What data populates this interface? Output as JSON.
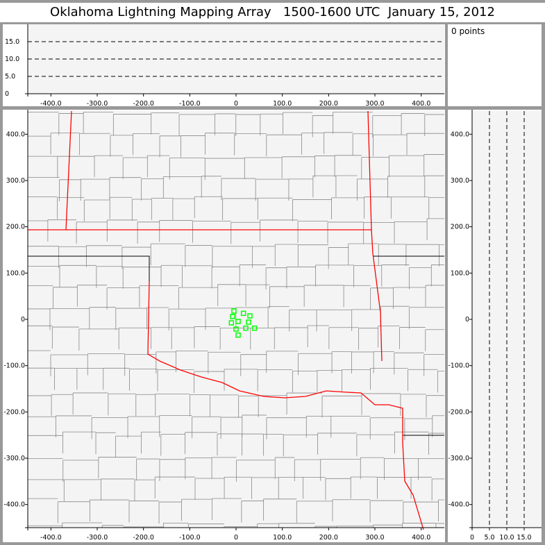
{
  "title": "Oklahoma Lightning Mapping Array   1500-1600 UTC  January 15, 2012",
  "info": {
    "point_count_label": "0 points"
  },
  "colors": {
    "background": "#999999",
    "plot_bg": "#f4f4f4",
    "state_border": "#ff0000",
    "county_border": "#888888",
    "marker": "#00ff00"
  },
  "chart_data": [
    {
      "type": "line",
      "panel": "top altitude vs east-west",
      "xlim": [
        -450,
        450
      ],
      "ylim": [
        0,
        20
      ],
      "x_ticks": [
        "-400.0",
        "-300.0",
        "-200.0",
        "-100.0",
        "0",
        "100.0",
        "200.0",
        "300.0",
        "400.0"
      ],
      "y_ticks": [
        "0",
        "5.0",
        "10.0",
        "15.0"
      ],
      "reference_lines_y": [
        5,
        10,
        15
      ]
    },
    {
      "type": "scatter",
      "panel": "plan view map",
      "xlim": [
        -450,
        450
      ],
      "ylim": [
        -450,
        450
      ],
      "x_ticks": [
        "-400.0",
        "-300.0",
        "-200.0",
        "-100.0",
        "0",
        "100.0",
        "200.0",
        "300.0",
        "400.0"
      ],
      "y_ticks": [
        "400.0",
        "300.0",
        "200.0",
        "100.0",
        "0",
        "-100.0",
        "-200.0",
        "-300.0",
        "-400.0"
      ],
      "markers": [
        {
          "x": -4.5,
          "y": 18
        },
        {
          "x": -7.5,
          "y": 6
        },
        {
          "x": 16,
          "y": 13
        },
        {
          "x": 30,
          "y": 7.5
        },
        {
          "x": -10,
          "y": -7.5
        },
        {
          "x": 4.5,
          "y": -4.5
        },
        {
          "x": 27,
          "y": -6
        },
        {
          "x": 0,
          "y": -21
        },
        {
          "x": 21,
          "y": -19
        },
        {
          "x": 40,
          "y": -19
        },
        {
          "x": 4.5,
          "y": -34
        }
      ]
    },
    {
      "type": "line",
      "panel": "right altitude vs north-south",
      "xlim": [
        0,
        20
      ],
      "ylim": [
        -450,
        450
      ],
      "x_ticks": [
        "0",
        "5.0",
        "10.0",
        "15.0"
      ],
      "y_ticks": [
        "400.0",
        "300.0",
        "200.0",
        "100.0",
        "0",
        "-100.0",
        "-200.0",
        "-300.0",
        "-400.0"
      ],
      "reference_lines_x": [
        5,
        10,
        15
      ]
    }
  ]
}
